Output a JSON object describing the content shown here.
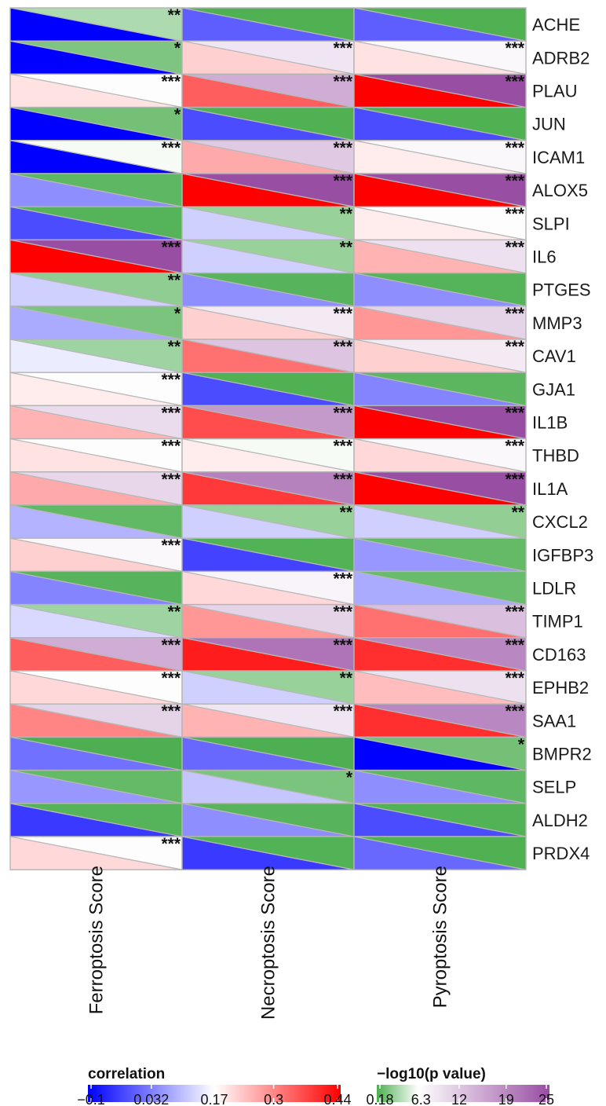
{
  "chart_data": {
    "type": "heatmap",
    "title": "",
    "columns": [
      "Ferroptosis Score",
      "Necroptosis Score",
      "Pyroptosis Score"
    ],
    "rows": [
      "ACHE",
      "ADRB2",
      "PLAU",
      "JUN",
      "ICAM1",
      "ALOX5",
      "SLPI",
      "IL6",
      "PTGES",
      "MMP3",
      "CAV1",
      "GJA1",
      "IL1B",
      "THBD",
      "IL1A",
      "CXCL2",
      "IGFBP3",
      "LDLR",
      "TIMP1",
      "CD163",
      "EPHB2",
      "SAA1",
      "BMPR2",
      "SELP",
      "ALDH2",
      "PRDX4"
    ],
    "correlation": [
      [
        -0.1,
        0.0,
        0.0
      ],
      [
        -0.1,
        0.22,
        0.2
      ],
      [
        0.2,
        0.34,
        0.44
      ],
      [
        -0.1,
        -0.02,
        -0.02
      ],
      [
        -0.1,
        0.26,
        0.19
      ],
      [
        0.05,
        0.44,
        0.44
      ],
      [
        -0.02,
        0.12,
        0.19
      ],
      [
        0.44,
        0.12,
        0.25
      ],
      [
        0.12,
        0.05,
        0.05
      ],
      [
        0.08,
        0.22,
        0.28
      ],
      [
        0.15,
        0.32,
        0.22
      ],
      [
        0.19,
        -0.02,
        0.04
      ],
      [
        0.25,
        0.36,
        0.44
      ],
      [
        0.2,
        0.19,
        0.21
      ],
      [
        0.26,
        0.38,
        0.44
      ],
      [
        0.09,
        0.12,
        0.12
      ],
      [
        0.22,
        -0.03,
        0.06
      ],
      [
        0.04,
        0.21,
        0.08
      ],
      [
        0.13,
        0.28,
        0.32
      ],
      [
        0.34,
        0.41,
        0.39
      ],
      [
        0.21,
        0.12,
        0.24
      ],
      [
        0.3,
        0.25,
        0.39
      ],
      [
        0.02,
        0.01,
        -0.1
      ],
      [
        0.06,
        0.11,
        0.05
      ],
      [
        -0.04,
        0.05,
        -0.02
      ],
      [
        0.21,
        -0.04,
        0.01
      ]
    ],
    "neg_log10_p": [
      [
        3.5,
        0.3,
        0.3
      ],
      [
        1.9,
        9.0,
        7.0
      ],
      [
        6.5,
        15.0,
        25.0
      ],
      [
        1.5,
        0.3,
        0.3
      ],
      [
        6.0,
        12.0,
        7.0
      ],
      [
        0.8,
        25.0,
        25.0
      ],
      [
        0.5,
        2.8,
        6.5
      ],
      [
        25.0,
        2.8,
        9.5
      ],
      [
        2.5,
        0.6,
        0.5
      ],
      [
        1.8,
        8.5,
        11.0
      ],
      [
        3.0,
        12.5,
        8.5
      ],
      [
        6.5,
        0.3,
        0.7
      ],
      [
        10.0,
        17.0,
        25.0
      ],
      [
        6.5,
        6.0,
        7.0
      ],
      [
        10.5,
        19.5,
        25.0
      ],
      [
        0.9,
        2.8,
        2.6
      ],
      [
        7.0,
        0.4,
        1.0
      ],
      [
        0.6,
        7.5,
        1.2
      ],
      [
        3.0,
        11.0,
        13.0
      ],
      [
        15.0,
        21.0,
        19.0
      ],
      [
        6.5,
        2.8,
        9.5
      ],
      [
        11.0,
        9.0,
        19.0
      ],
      [
        0.2,
        0.2,
        1.5
      ],
      [
        1.0,
        1.8,
        0.8
      ],
      [
        0.5,
        0.6,
        0.4
      ],
      [
        6.5,
        0.4,
        0.3
      ]
    ],
    "significance": [
      [
        "**",
        "",
        ""
      ],
      [
        "*",
        "***",
        "***"
      ],
      [
        "***",
        "***",
        "***"
      ],
      [
        "*",
        "",
        ""
      ],
      [
        "***",
        "***",
        "***"
      ],
      [
        "",
        "***",
        "***"
      ],
      [
        "",
        "**",
        "***"
      ],
      [
        "***",
        "**",
        "***"
      ],
      [
        "**",
        "",
        ""
      ],
      [
        "*",
        "***",
        "***"
      ],
      [
        "**",
        "***",
        "***"
      ],
      [
        "***",
        "",
        ""
      ],
      [
        "***",
        "***",
        "***"
      ],
      [
        "***",
        "***",
        "***"
      ],
      [
        "***",
        "***",
        "***"
      ],
      [
        "",
        "**",
        "**"
      ],
      [
        "***",
        "",
        ""
      ],
      [
        "",
        "***",
        ""
      ],
      [
        "**",
        "***",
        "***"
      ],
      [
        "***",
        "***",
        "***"
      ],
      [
        "***",
        "**",
        "***"
      ],
      [
        "***",
        "***",
        "***"
      ],
      [
        "",
        "",
        "*"
      ],
      [
        "",
        "*",
        ""
      ],
      [
        "",
        "",
        ""
      ],
      [
        "***",
        "",
        ""
      ]
    ],
    "legend": {
      "correlation": {
        "title": "correlation",
        "ticks": [
          "−0.1",
          "0.032",
          "0.17",
          "0.3",
          "0.44"
        ],
        "tick_values": [
          -0.1,
          0.032,
          0.17,
          0.3,
          0.44
        ],
        "colors": [
          "#0000ff",
          "#ffffff",
          "#ff0000"
        ]
      },
      "pvalue": {
        "title": "−log10(p value)",
        "ticks": [
          "0.18",
          "6.3",
          "12",
          "19",
          "25"
        ],
        "tick_values": [
          0.18,
          6.3,
          12,
          19,
          25
        ],
        "colors": [
          "#4caf50",
          "#ffffff",
          "#984ea3"
        ]
      }
    }
  }
}
